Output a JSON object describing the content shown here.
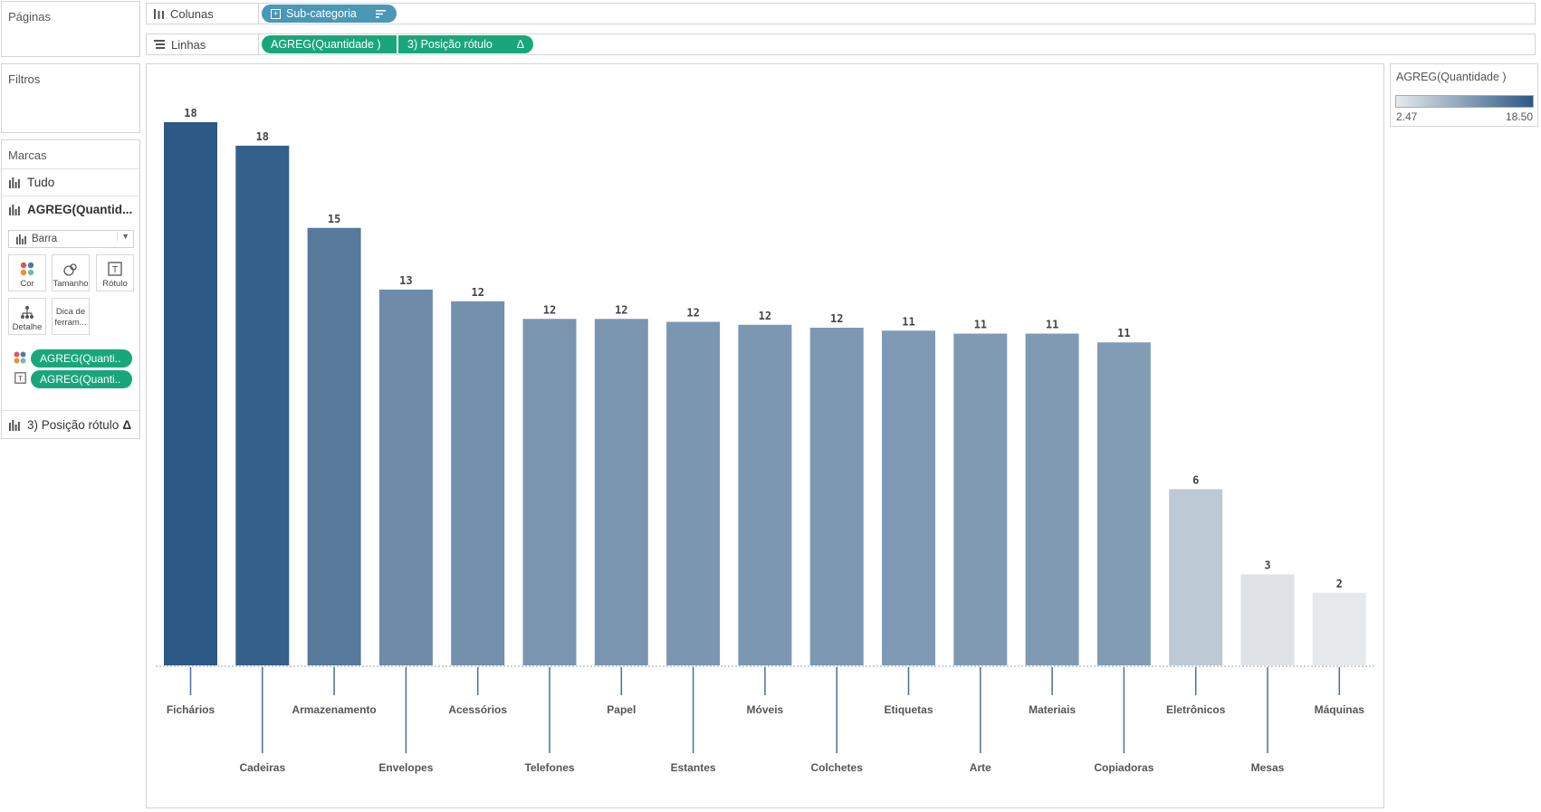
{
  "sidebar": {
    "pages_title": "Páginas",
    "filters_title": "Filtros",
    "marks_title": "Marcas",
    "marks_all": "Tudo",
    "marks_measure": "AGREG(Quantid...",
    "mark_type": "Barra",
    "buttons": {
      "color": "Cor",
      "size": "Tamanho",
      "label": "Rótulo",
      "detail": "Detalhe",
      "tooltip_line1": "Dica de",
      "tooltip_line2": "ferram..."
    },
    "pills": [
      "AGREG(Quanti..",
      "AGREG(Quanti.."
    ],
    "marks_label_position": "3) Posição rótulo",
    "delta_symbol": "Δ"
  },
  "shelves": {
    "columns_label": "Colunas",
    "columns_pill": "Sub-categoria",
    "rows_label": "Linhas",
    "rows_pill_1": "AGREG(Quantidade )",
    "rows_pill_2": "3) Posição rótulo",
    "delta_symbol": "Δ"
  },
  "legend": {
    "title": "AGREG(Quantidade )",
    "min": "2.47",
    "max": "18.50",
    "color_min": "#e6e9ec",
    "color_max": "#2c5985"
  },
  "chart_data": {
    "type": "bar",
    "categories": [
      "Fichários",
      "Cadeiras",
      "Armazenamento",
      "Envelopes",
      "Acessórios",
      "Telefones",
      "Papel",
      "Estantes",
      "Móveis",
      "Colchetes",
      "Etiquetas",
      "Arte",
      "Materiais",
      "Copiadoras",
      "Eletrônicos",
      "Mesas",
      "Máquinas"
    ],
    "values": [
      18.5,
      17.7,
      14.9,
      12.8,
      12.4,
      11.8,
      11.8,
      11.7,
      11.6,
      11.5,
      11.4,
      11.3,
      11.3,
      11.0,
      6.0,
      3.1,
      2.47
    ],
    "labels": [
      "18",
      "18",
      "15",
      "13",
      "12",
      "12",
      "12",
      "12",
      "12",
      "12",
      "11",
      "11",
      "11",
      "11",
      "6",
      "3",
      "2"
    ],
    "ylim": [
      0,
      18.5
    ],
    "color_range": [
      2.47,
      18.5
    ],
    "grid": false
  }
}
